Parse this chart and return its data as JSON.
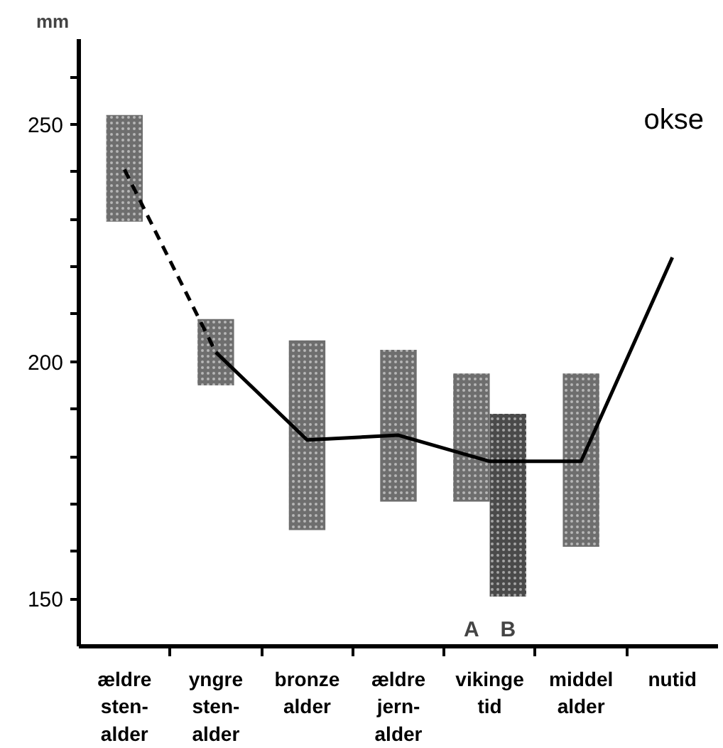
{
  "chart_data": {
    "type": "bar",
    "ylabel": "mm",
    "categories": [
      "ældre\nsten-\nalder",
      "yngre\nsten-\nalder",
      "bronze\nalder",
      "ældre\njern-\nalder",
      "vikinge\ntid",
      "middel\nalder",
      "nutid"
    ],
    "series": [
      {
        "color": "#6e6e6e",
        "base": [
          229.5,
          195,
          164.5,
          170.5,
          null,
          161,
          null
        ],
        "values": [
          22.5,
          14,
          40,
          32,
          null,
          36.5,
          null
        ]
      },
      {
        "name": "A",
        "color": "#6e6e6e",
        "base": [
          null,
          null,
          null,
          null,
          170.5,
          null,
          null
        ],
        "values": [
          null,
          null,
          null,
          null,
          27,
          null,
          null
        ]
      },
      {
        "name": "B",
        "color": "#4a4a4a",
        "base": [
          null,
          null,
          null,
          null,
          150.5,
          null,
          null
        ],
        "values": [
          null,
          null,
          null,
          null,
          38.5,
          null,
          null
        ]
      },
      {
        "type": "line",
        "line_style": "dashed",
        "color": "#000000",
        "values": [
          240.5,
          202,
          null,
          null,
          null,
          null,
          null
        ]
      },
      {
        "type": "line",
        "line_style": "solid",
        "color": "#000000",
        "values": [
          null,
          202,
          183.5,
          184.5,
          179,
          179,
          222
        ]
      }
    ],
    "ylim": [
      140,
      268
    ],
    "yticks": [
      150,
      {
        "value": 160,
        "label": null
      },
      {
        "value": 170,
        "label": null
      },
      {
        "value": 180,
        "label": null
      },
      {
        "value": 190,
        "label": null
      },
      200,
      {
        "value": 210,
        "label": null
      },
      {
        "value": 220,
        "label": null
      },
      {
        "value": 230,
        "label": null
      },
      {
        "value": 240,
        "label": null
      },
      250,
      {
        "value": 260,
        "label": null
      }
    ],
    "grid": false,
    "annotations": [
      "okse"
    ]
  }
}
